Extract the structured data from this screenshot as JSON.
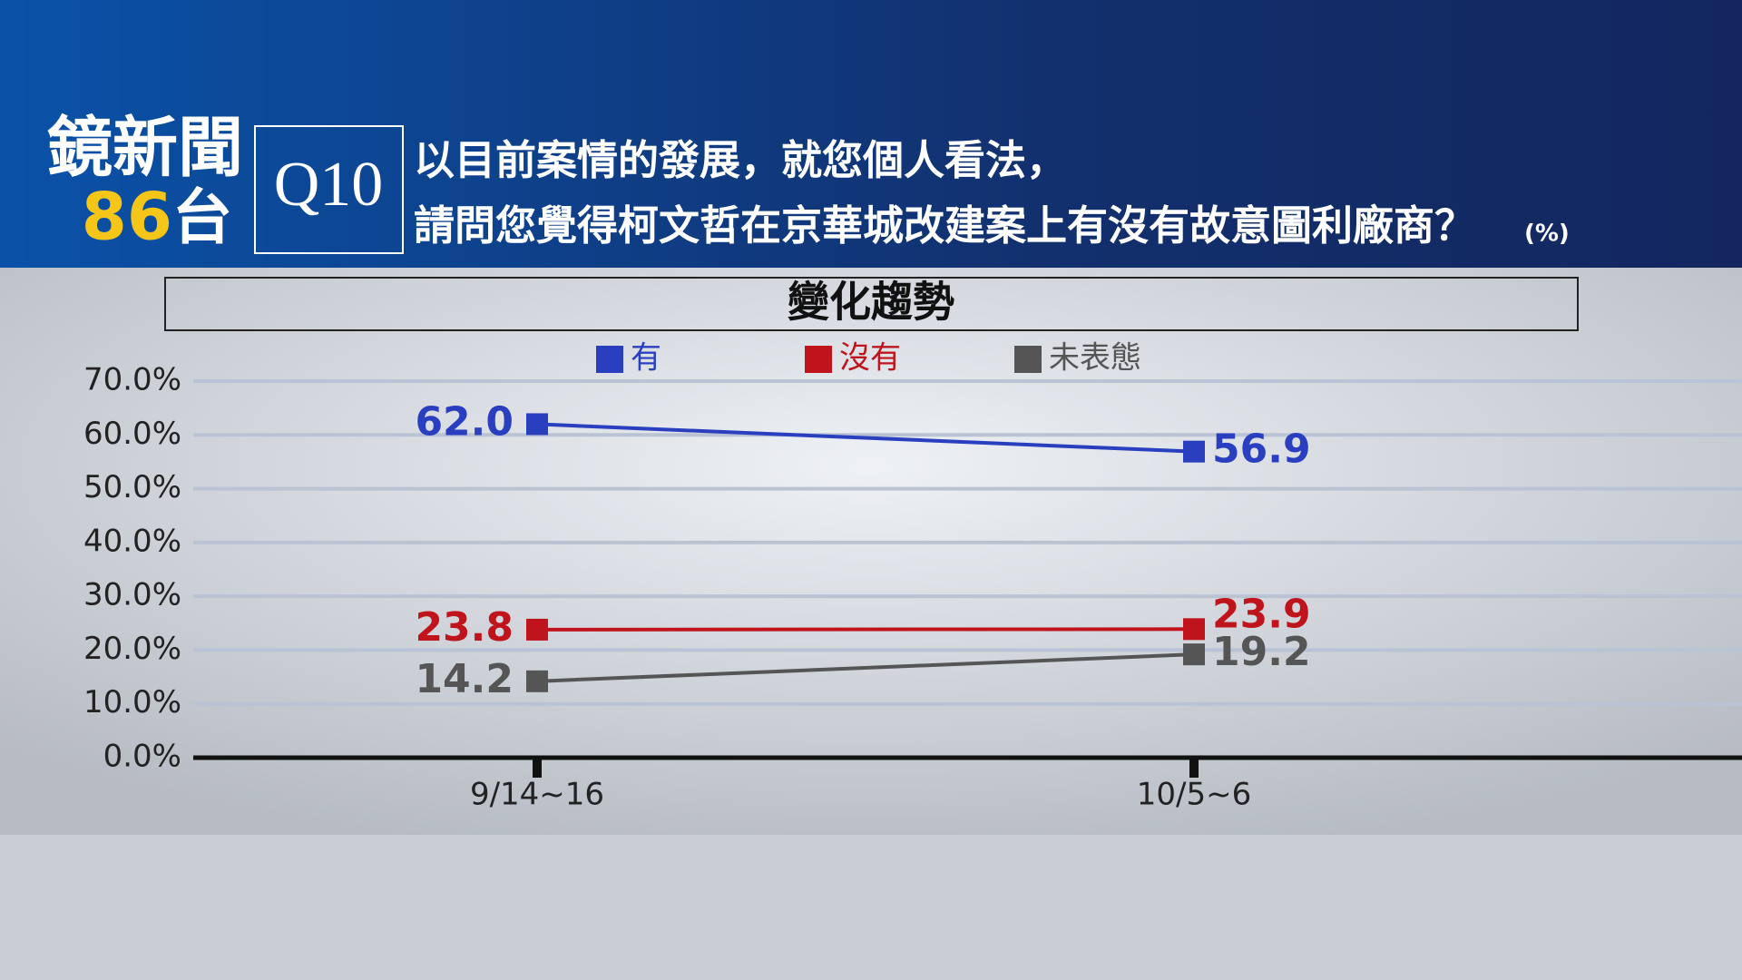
{
  "header": {
    "logo": [
      "鏡新聞",
      "86",
      "台"
    ],
    "question_number": "Q10",
    "question": [
      "以目前案情的發展，就您個人看法，",
      "請問您覺得柯文哲在京華城改建案上有沒有故意圖利廠商？"
    ],
    "unit": "(%)"
  },
  "chart_data": {
    "type": "line",
    "title": "變化趨勢",
    "categories": [
      "9/14~16",
      "10/5~6"
    ],
    "series": [
      {
        "name": "有",
        "color": "#2a3fbf",
        "values": [
          62.0,
          56.9
        ],
        "value_labels": [
          "62.0",
          "56.9"
        ]
      },
      {
        "name": "沒有",
        "color": "#c0141c",
        "values": [
          23.8,
          23.9
        ],
        "value_labels": [
          "23.8",
          "23.9"
        ]
      },
      {
        "name": "未表態",
        "color": "#555555",
        "values": [
          14.2,
          19.2
        ],
        "value_labels": [
          "14.2",
          "19.2"
        ]
      }
    ],
    "ylim": [
      0,
      70
    ],
    "yticks": [
      {
        "value": 0,
        "label": "0.0%"
      },
      {
        "value": 10,
        "label": "10.0%"
      },
      {
        "value": 20,
        "label": "20.0%"
      },
      {
        "value": 30,
        "label": "30.0%"
      },
      {
        "value": 40,
        "label": "40.0%"
      },
      {
        "value": 50,
        "label": "50.0%"
      },
      {
        "value": 60,
        "label": "60.0%"
      },
      {
        "value": 70,
        "label": "70.0%"
      }
    ],
    "grid": true,
    "legend": "top"
  }
}
